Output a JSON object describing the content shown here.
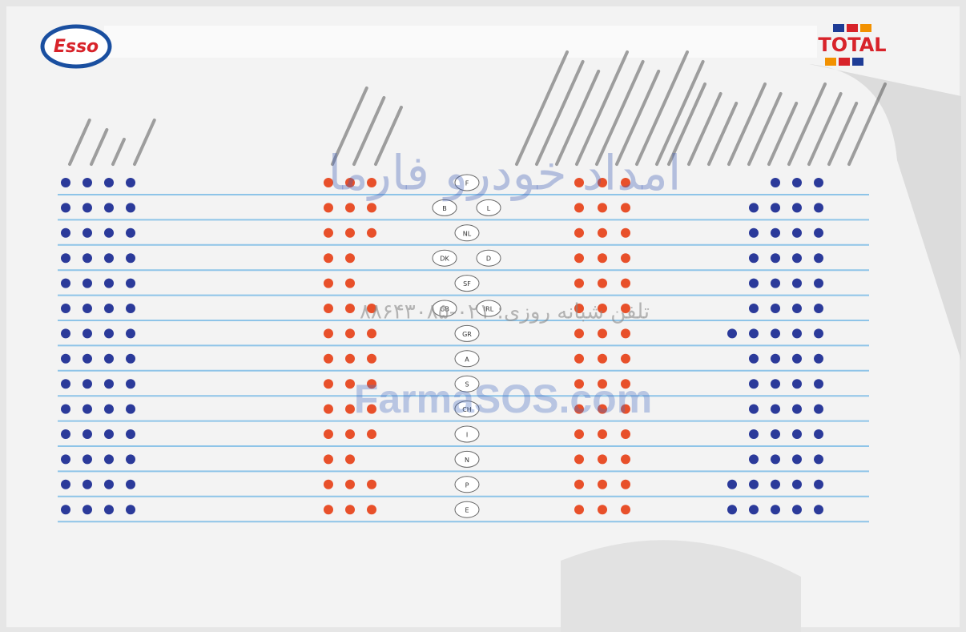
{
  "header": {
    "left_logo": "Esso",
    "right_logo": "TOTAL"
  },
  "watermark": {
    "name": "امداد خودرو فارما",
    "phone": "تلفن شبانه روزی: ۰۲۱-۸۸۶۴۳۰۸۵",
    "site": "FarmaSOS.com"
  },
  "rows": [
    {
      "codes": [
        "F"
      ],
      "esso_a": 4,
      "total_a": 3,
      "total_b": 3,
      "esso_b": 3
    },
    {
      "codes": [
        "B",
        "L"
      ],
      "esso_a": 4,
      "total_a": 3,
      "total_b": 3,
      "esso_b": 4
    },
    {
      "codes": [
        "NL"
      ],
      "esso_a": 4,
      "total_a": 3,
      "total_b": 3,
      "esso_b": 4
    },
    {
      "codes": [
        "DK",
        "D"
      ],
      "esso_a": 4,
      "total_a": 2,
      "total_b": 3,
      "esso_b": 4
    },
    {
      "codes": [
        "SF"
      ],
      "esso_a": 4,
      "total_a": 2,
      "total_b": 3,
      "esso_b": 4
    },
    {
      "codes": [
        "GB",
        "IRL"
      ],
      "esso_a": 4,
      "total_a": 3,
      "total_b": 3,
      "esso_b": 4
    },
    {
      "codes": [
        "GR"
      ],
      "esso_a": 4,
      "total_a": 3,
      "total_b": 3,
      "esso_b": 5
    },
    {
      "codes": [
        "A"
      ],
      "esso_a": 4,
      "total_a": 3,
      "total_b": 3,
      "esso_b": 4
    },
    {
      "codes": [
        "S"
      ],
      "esso_a": 4,
      "total_a": 3,
      "total_b": 3,
      "esso_b": 4
    },
    {
      "codes": [
        "CH"
      ],
      "esso_a": 4,
      "total_a": 3,
      "total_b": 3,
      "esso_b": 4
    },
    {
      "codes": [
        "I"
      ],
      "esso_a": 4,
      "total_a": 3,
      "total_b": 3,
      "esso_b": 4
    },
    {
      "codes": [
        "N"
      ],
      "esso_a": 4,
      "total_a": 2,
      "total_b": 3,
      "esso_b": 4
    },
    {
      "codes": [
        "P"
      ],
      "esso_a": 4,
      "total_a": 3,
      "total_b": 3,
      "esso_b": 5
    },
    {
      "codes": [
        "E"
      ],
      "esso_a": 4,
      "total_a": 3,
      "total_b": 3,
      "esso_b": 5
    }
  ]
}
